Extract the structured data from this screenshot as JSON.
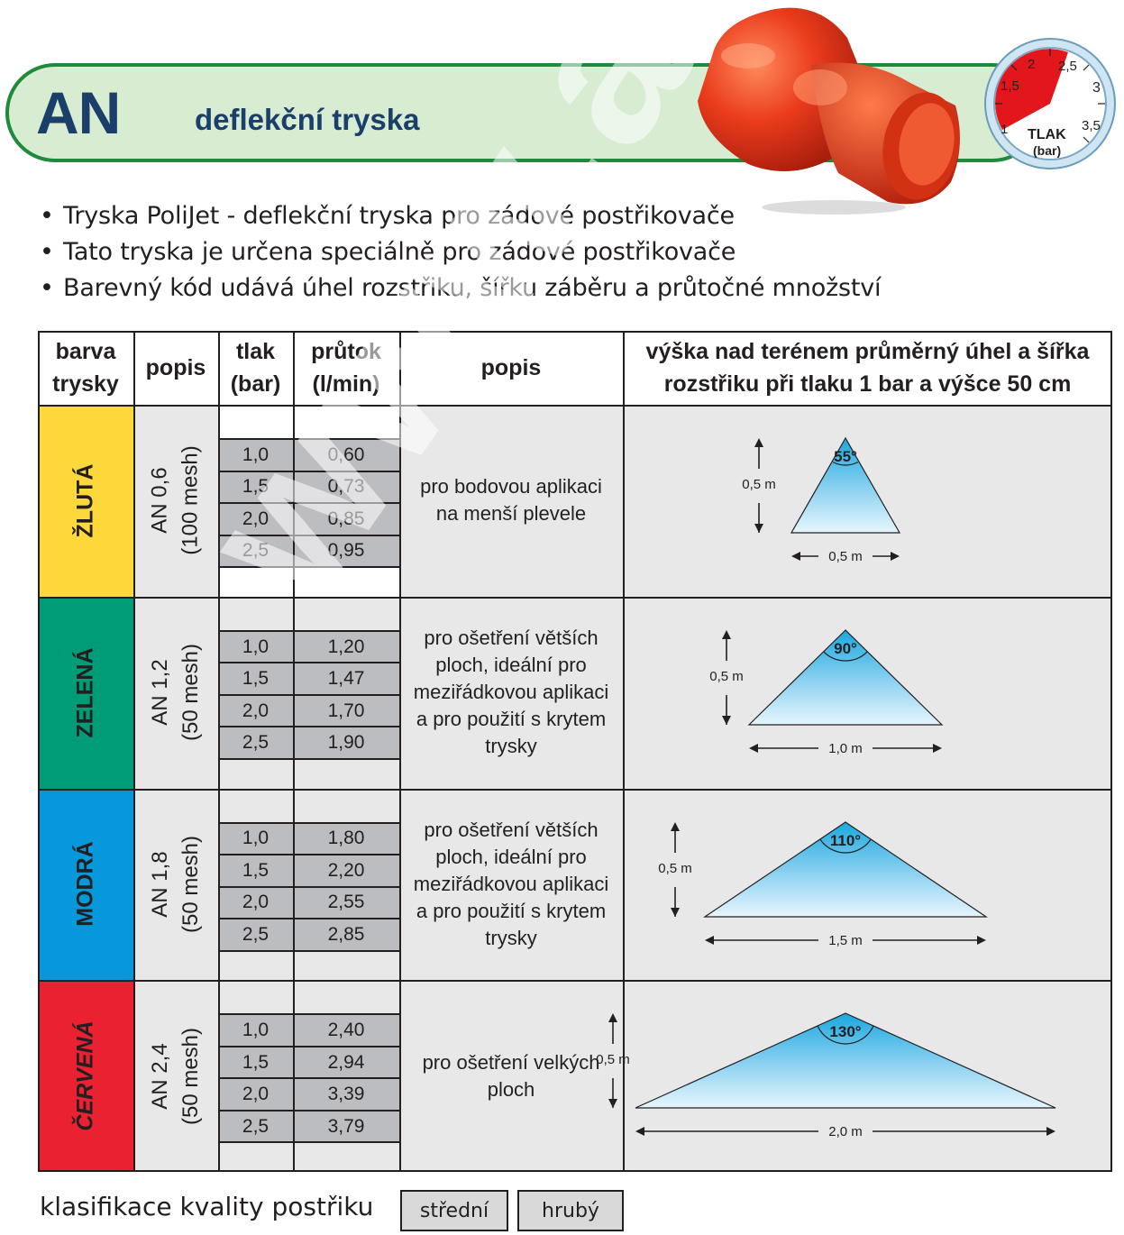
{
  "header": {
    "code": "AN",
    "subtitle": "deflekční tryska"
  },
  "gauge": {
    "marks": [
      "1",
      "1,5",
      "2",
      "2,5",
      "3",
      "3,5"
    ],
    "label": "TLAK",
    "unit": "(bar)"
  },
  "bullets": [
    "Tryska PoliJet - deflekční tryska pro zádové postřikovače",
    "Tato tryska je určena speciálně pro zádové postřikovače",
    "Barevný kód udává úhel rozstřiku, šířku záběru a průtočné množství"
  ],
  "table": {
    "headers": {
      "color": "barva trysky",
      "popis": "popis",
      "tlak": "tlak (bar)",
      "prutok": "průtok (l/min)",
      "popis2": "popis",
      "diagram": "výška nad terénem průměrný úhel a šířka rozstřiku při tlaku 1 bar a výšce 50 cm"
    },
    "rows": [
      {
        "color_name": "ŽLUTÁ",
        "model": "AN 0,6",
        "mesh": "(100 mesh)",
        "pressures": [
          "1,0",
          "1,5",
          "2,0",
          "2,5"
        ],
        "flows": [
          "0,60",
          "0,73",
          "0,85",
          "0,95"
        ],
        "description": "pro bodovou aplikaci na menší plevele",
        "angle": "55°",
        "height": "0,5 m",
        "width": "0,5 m",
        "bg": "#fdd83a",
        "fg": "#231f20"
      },
      {
        "color_name": "ZELENÁ",
        "model": "AN 1,2",
        "mesh": "(50 mesh)",
        "pressures": [
          "1,0",
          "1,5",
          "2,0",
          "2,5"
        ],
        "flows": [
          "1,20",
          "1,47",
          "1,70",
          "1,90"
        ],
        "description": "pro ošetření větších ploch, ideální pro meziřádkovou aplikaci a pro použití s krytem trysky",
        "angle": "90°",
        "height": "0,5 m",
        "width": "1,0 m",
        "bg": "#009b77",
        "fg": "#231f20"
      },
      {
        "color_name": "MODRÁ",
        "model": "AN 1,8",
        "mesh": "(50 mesh)",
        "pressures": [
          "1,0",
          "1,5",
          "2,0",
          "2,5"
        ],
        "flows": [
          "1,80",
          "2,20",
          "2,55",
          "2,85"
        ],
        "description": "pro ošetření větších ploch, ideální pro meziřádkovou aplikaci a pro použití s krytem trysky",
        "angle": "110°",
        "height": "0,5 m",
        "width": "1,5 m",
        "bg": "#0798dc",
        "fg": "#231f20"
      },
      {
        "color_name": "ČERVENÁ",
        "model": "AN 2,4",
        "mesh": "(50 mesh)",
        "pressures": [
          "1,0",
          "1,5",
          "2,0",
          "2,5"
        ],
        "flows": [
          "2,40",
          "2,94",
          "3,39",
          "3,79"
        ],
        "description": "pro ošetření velkých ploch",
        "angle": "130°",
        "height": "0,5 m",
        "width": "2,0 m",
        "bg": "#e92131",
        "fg": "#231f20"
      }
    ]
  },
  "legend": {
    "label": "klasifikace kvality postřiku",
    "items": [
      "střední",
      "hrubý"
    ]
  },
  "watermark": "www.akp"
}
